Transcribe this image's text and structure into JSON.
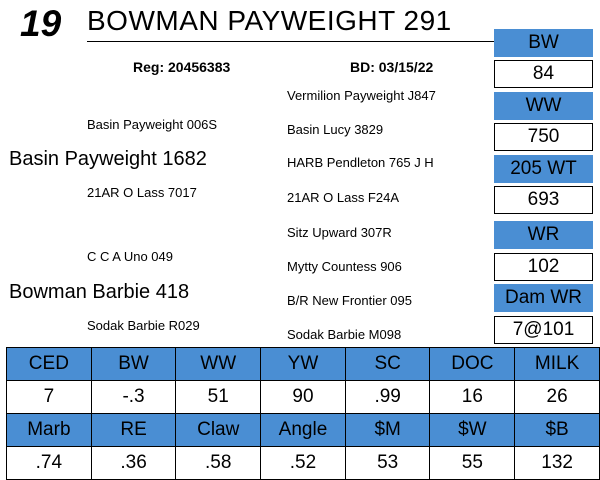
{
  "lot_number": "19",
  "animal_name": "BOWMAN PAYWEIGHT 291",
  "registration": "Reg: 20456383",
  "birth_date": "BD: 03/15/22",
  "pedigree": {
    "sire": "Basin Payweight 1682",
    "sire_sire": "Basin Payweight 006S",
    "sire_dam": "21AR O Lass 7017",
    "dam": "Bowman Barbie 418",
    "dam_sire": "C C A Uno 049",
    "dam_dam": "Sodak Barbie R029",
    "ggp": [
      "Vermilion Payweight J847",
      "Basin Lucy 3829",
      "HARB Pendleton 765 J H",
      "21AR O Lass F24A",
      "Sitz Upward 307R",
      "Mytty Countess 906",
      "B/R New Frontier 095",
      "Sodak Barbie M098"
    ]
  },
  "performance": [
    {
      "label": "BW",
      "value": "84"
    },
    {
      "label": "WW",
      "value": "750"
    },
    {
      "label": "205 WT",
      "value": "693"
    },
    {
      "label": "WR",
      "value": "102"
    },
    {
      "label": "Dam WR",
      "value": "7@101"
    }
  ],
  "epds_row1": [
    {
      "label": "CED",
      "value": "7"
    },
    {
      "label": "BW",
      "value": "-.3"
    },
    {
      "label": "WW",
      "value": "51"
    },
    {
      "label": "YW",
      "value": "90"
    },
    {
      "label": "SC",
      "value": ".99"
    },
    {
      "label": "DOC",
      "value": "16"
    },
    {
      "label": "MILK",
      "value": "26"
    }
  ],
  "epds_row2": [
    {
      "label": "Marb",
      "value": ".74"
    },
    {
      "label": "RE",
      "value": ".36"
    },
    {
      "label": "Claw",
      "value": ".58"
    },
    {
      "label": "Angle",
      "value": ".52"
    },
    {
      "label": "$M",
      "value": "53"
    },
    {
      "label": "$W",
      "value": "55"
    },
    {
      "label": "$B",
      "value": "132"
    }
  ],
  "colors": {
    "header_fill": "#4a8ed3",
    "text": "#000000",
    "background": "#ffffff"
  }
}
